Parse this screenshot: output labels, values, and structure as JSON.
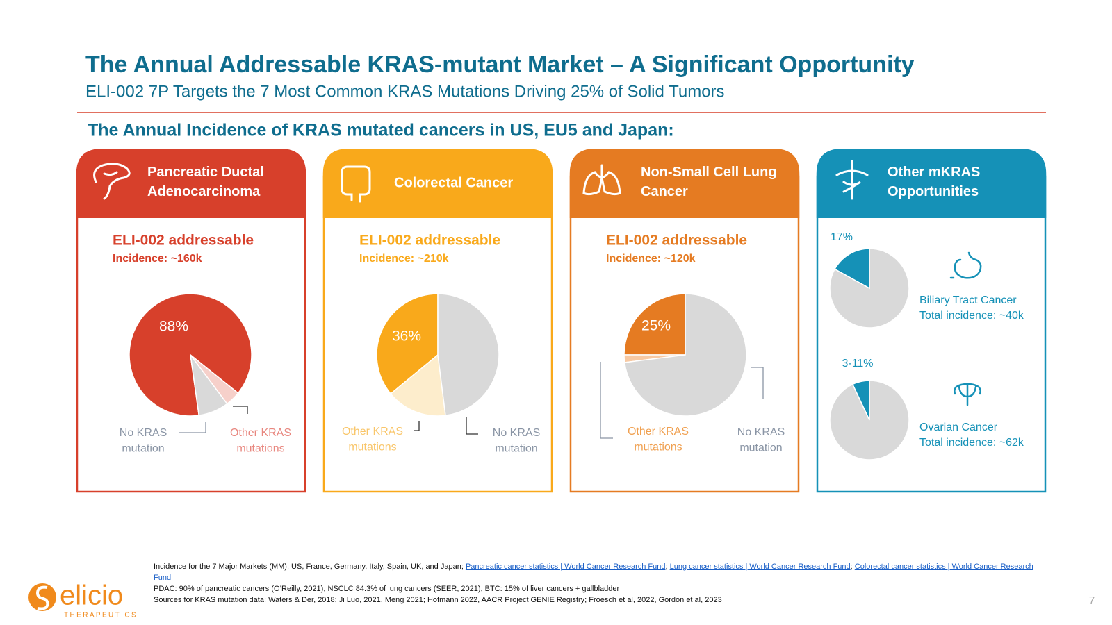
{
  "header": {
    "title": "The Annual Addressable KRAS-mutant Market – A Significant Opportunity",
    "subtitle": "ELI-002 7P Targets the 7 Most Common KRAS Mutations Driving 25% of Solid Tumors",
    "section": "The Annual Incidence of KRAS mutated cancers in US, EU5 and Japan:"
  },
  "cards": [
    {
      "title": "Pancreatic Ductal Adenocarcinoma",
      "color": "#d7402b"
    },
    {
      "title": "Colorectal Cancer",
      "color": "#f9a91b"
    },
    {
      "title": "Non-Small Cell Lung Cancer",
      "color": "#e57b22"
    },
    {
      "title": "Other mKRAS Opportunities",
      "color": "#1591b7"
    }
  ],
  "chart_data": [
    {
      "type": "pie",
      "title": "ELI-002 addressable",
      "subtitle": "Incidence: ~160k",
      "categories": [
        null,
        "Other KRAS mutations",
        "No KRAS mutation"
      ],
      "values": [
        88,
        4,
        8
      ],
      "value_labels": [
        "88%",
        null,
        null
      ],
      "colors": [
        "#d7402b",
        "#f6d0ca",
        "#d9d9d9"
      ]
    },
    {
      "type": "pie",
      "title": "ELI-002 addressable",
      "subtitle": "Incidence: ~210k",
      "categories": [
        null,
        "Other KRAS mutations",
        "No KRAS mutation"
      ],
      "values": [
        36,
        16,
        48
      ],
      "value_labels": [
        "36%",
        null,
        null
      ],
      "colors": [
        "#f9a91b",
        "#fdedcc",
        "#d9d9d9"
      ]
    },
    {
      "type": "pie",
      "title": "ELI-002 addressable",
      "subtitle": "Incidence: ~120k",
      "categories": [
        null,
        "Other KRAS mutations",
        "No KRAS mutation"
      ],
      "values": [
        25,
        2,
        73
      ],
      "value_labels": [
        "25%",
        null,
        null
      ],
      "colors": [
        "#e57b22",
        "#f7c9a3",
        "#d9d9d9"
      ]
    },
    {
      "type": "pie",
      "title": "Biliary Tract Cancer",
      "subtitle": "Total incidence: ~40k",
      "values": [
        17,
        83
      ],
      "value_labels": [
        "17%",
        null
      ],
      "colors": [
        "#1591b7",
        "#d9d9d9"
      ]
    },
    {
      "type": "pie",
      "title": "Ovarian Cancer",
      "subtitle": "Total incidence: ~62k",
      "values": [
        7,
        93
      ],
      "value_labels": [
        "3-11%",
        null
      ],
      "colors": [
        "#1591b7",
        "#d9d9d9"
      ]
    }
  ],
  "footnotes": {
    "line1": [
      {
        "text": "Incidence for the 7 Major Markets (MM): US, France, Germany, Italy, Spain, UK, and Japan; "
      },
      {
        "text": "Pancreatic cancer statistics | World Cancer Research Fund",
        "link": true
      },
      {
        "text": "; "
      },
      {
        "text": "Lung cancer statistics | World Cancer Research Fund",
        "link": true
      },
      {
        "text": "; "
      },
      {
        "text": "Colorectal cancer statistics | World Cancer Research Fund",
        "link": true
      }
    ],
    "notes": [
      "PDAC: 90% of pancreatic cancers (O’Reilly, 2021), NSCLC 84.3% of lung cancers (SEER, 2021), BTC: 15% of liver cancers + gallbladder",
      "Sources for KRAS mutation data: Waters & Der, 2018; Ji Luo, 2021, Meng 2021; Hofmann 2022, AACR Project GENIE Registry; Froesch et al, 2022, Gordon et al, 2023"
    ]
  },
  "logo": {
    "name": "elicio",
    "tagline": "THERAPEUTICS"
  },
  "page_number": "7"
}
